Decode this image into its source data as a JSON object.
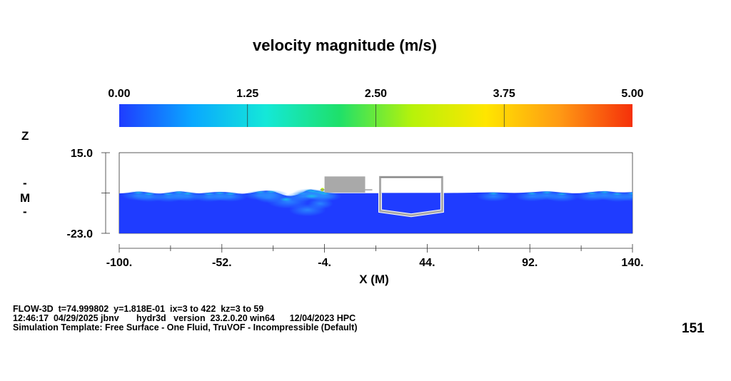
{
  "chart_data": {
    "type": "heatmap",
    "title": "velocity magnitude (m/s)",
    "colorbar": {
      "min": 0.0,
      "max": 5.0,
      "tick_labels": [
        "0.00",
        "1.25",
        "2.50",
        "3.75",
        "5.00"
      ],
      "tick_values": [
        0.0,
        1.25,
        2.5,
        3.75,
        5.0
      ],
      "colors": [
        "#1f3cff",
        "#0aa8ff",
        "#14e8d8",
        "#1ee06a",
        "#b7f20a",
        "#ffe600",
        "#ff9a14",
        "#f5300a"
      ]
    },
    "xlabel": "X  (M)",
    "ylabel": [
      "Z",
      "-",
      "M",
      "-"
    ],
    "xlim": [
      -100,
      140
    ],
    "ylim": [
      -23,
      15
    ],
    "x_tick_labels": [
      "-100.",
      "-52.",
      "-4.",
      "44.",
      "92.",
      "140."
    ],
    "x_tick_values": [
      -100,
      -52,
      -4,
      44,
      92,
      140
    ],
    "y_tick_labels": [
      "15.0",
      "-23.0"
    ],
    "y_tick_values": [
      15,
      -23
    ],
    "fluid": {
      "background_velocity": 0.2,
      "still_water_level": -4.0,
      "surface_profile": [
        [
          -100,
          -4.2
        ],
        [
          -96,
          -4.0
        ],
        [
          -91,
          -3.2
        ],
        [
          -86,
          -3.8
        ],
        [
          -82,
          -4.4
        ],
        [
          -77,
          -3.9
        ],
        [
          -72,
          -3.1
        ],
        [
          -68,
          -3.6
        ],
        [
          -63,
          -4.3
        ],
        [
          -58,
          -3.8
        ],
        [
          -53,
          -3.4
        ],
        [
          -48,
          -3.7
        ],
        [
          -44,
          -4.4
        ],
        [
          -39,
          -4.2
        ],
        [
          -34,
          -3.0
        ],
        [
          -29,
          -2.8
        ],
        [
          -25,
          -4.3
        ],
        [
          -21,
          -5.6
        ],
        [
          -17,
          -5.0
        ],
        [
          -14,
          -3.6
        ],
        [
          -11,
          -2.2
        ],
        [
          -9,
          -2.6
        ],
        [
          -6,
          -3.1
        ],
        [
          -4,
          -3.6
        ],
        [
          -2,
          -4.0
        ],
        [
          0,
          -4.1
        ],
        [
          20,
          -4.1
        ],
        [
          60,
          -4.0
        ],
        [
          75,
          -3.6
        ],
        [
          85,
          -4.1
        ],
        [
          93,
          -3.6
        ],
        [
          100,
          -3.1
        ],
        [
          107,
          -3.8
        ],
        [
          114,
          -4.3
        ],
        [
          121,
          -3.5
        ],
        [
          127,
          -3.0
        ],
        [
          133,
          -3.8
        ],
        [
          140,
          -3.6
        ]
      ]
    },
    "structures": [
      {
        "name": "rectangular-pontoon",
        "x_range": [
          -4,
          15
        ],
        "z_range": [
          -3.8,
          3.8
        ],
        "color": "#a9a9a9"
      },
      {
        "name": "channel-hull",
        "x_range": [
          22,
          51
        ],
        "z_range": [
          -14.5,
          3.5
        ],
        "color": "#a9a9a9"
      }
    ]
  },
  "footer": {
    "line1": "FLOW-3D  t=74.999802  y=1.818E-01  ix=3 to 422  kz=3 to 59",
    "line2": "12:46:17  04/29/2025 jbnv       hydr3d   version  23.2.0.20 win64      12/04/2023 HPC",
    "line3": "Simulation Template: Free Surface - One Fluid, TruVOF - Incompressible (Default)"
  },
  "frame_number": "151"
}
